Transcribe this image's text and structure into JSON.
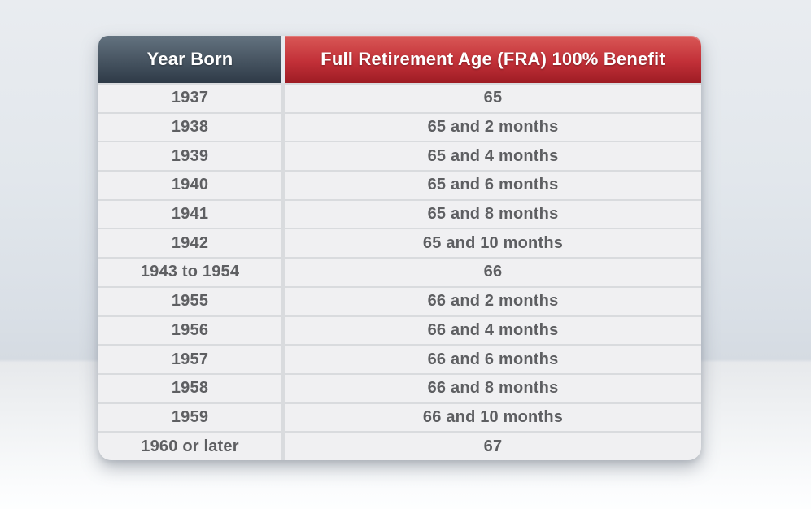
{
  "table": {
    "header": {
      "year_label": "Year Born",
      "fra_label": "Full Retirement Age (FRA) 100% Benefit"
    },
    "rows": [
      {
        "year": "1937",
        "fra": "65"
      },
      {
        "year": "1938",
        "fra": "65 and 2 months"
      },
      {
        "year": "1939",
        "fra": "65 and 4 months"
      },
      {
        "year": "1940",
        "fra": "65 and 6 months"
      },
      {
        "year": "1941",
        "fra": "65 and 8 months"
      },
      {
        "year": "1942",
        "fra": "65 and 10 months"
      },
      {
        "year": "1943 to 1954",
        "fra": "66"
      },
      {
        "year": "1955",
        "fra": "66 and 2 months"
      },
      {
        "year": "1956",
        "fra": "66 and 4 months"
      },
      {
        "year": "1957",
        "fra": "66 and 6 months"
      },
      {
        "year": "1958",
        "fra": "66 and 8 months"
      },
      {
        "year": "1959",
        "fra": "66 and 10 months"
      },
      {
        "year": "1960 or later",
        "fra": "67"
      }
    ]
  },
  "colors": {
    "slate_header_top": "#63727f",
    "slate_header_bottom": "#2e3a47",
    "red_header_top": "#d95856",
    "red_header_bottom": "#9e1c24",
    "row_background": "#f0f0f2",
    "separator": "#d9dbde",
    "cell_text": "#5e5f62",
    "header_text": "#ffffff"
  },
  "chart_data": {
    "type": "table",
    "title": "Full Retirement Age by Year Born",
    "columns": [
      "Year Born",
      "Full Retirement Age (FRA) 100% Benefit"
    ],
    "rows": [
      [
        "1937",
        "65"
      ],
      [
        "1938",
        "65 and 2 months"
      ],
      [
        "1939",
        "65 and 4 months"
      ],
      [
        "1940",
        "65 and 6 months"
      ],
      [
        "1941",
        "65 and 8 months"
      ],
      [
        "1942",
        "65 and 10 months"
      ],
      [
        "1943 to 1954",
        "66"
      ],
      [
        "1955",
        "66 and 2 months"
      ],
      [
        "1956",
        "66 and 4 months"
      ],
      [
        "1957",
        "66 and 6 months"
      ],
      [
        "1958",
        "66 and 8 months"
      ],
      [
        "1959",
        "66 and 10 months"
      ],
      [
        "1960 or later",
        "67"
      ]
    ]
  }
}
